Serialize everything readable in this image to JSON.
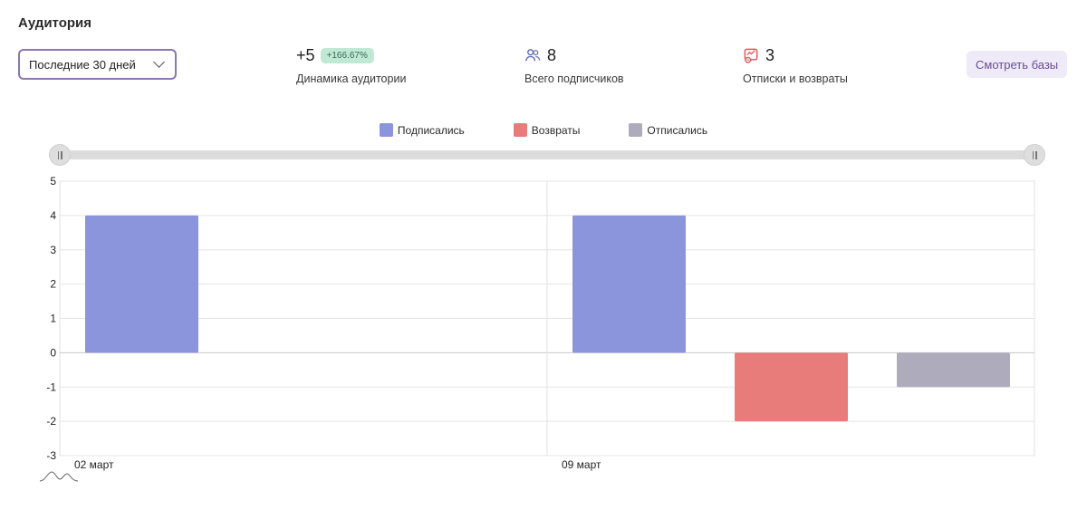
{
  "header": {
    "title": "Аудитория"
  },
  "period": {
    "value": "Последние 30 дней"
  },
  "stats": {
    "dynamics": {
      "value": "+5",
      "badge": "+166.67%",
      "label": "Динамика аудитории"
    },
    "subscribers": {
      "icon": "users-icon",
      "value": "8",
      "label": "Всего подписчиков"
    },
    "unsubscribes": {
      "icon": "unsubscribe-icon",
      "value": "3",
      "label": "Отписки и возвраты"
    }
  },
  "actions": {
    "view_bases": "Смотреть базы"
  },
  "colors": {
    "subscribed": "#8a95dc",
    "returns": "#e87c7a",
    "unsubscribed": "#aeacbc",
    "accent": "#8a77b3"
  },
  "chart_data": {
    "type": "bar",
    "categories": [
      "02 март",
      "09 март"
    ],
    "series": [
      {
        "name": "Подписались",
        "values": [
          4,
          4
        ]
      },
      {
        "name": "Возвраты",
        "values": [
          0,
          -2
        ]
      },
      {
        "name": "Отписались",
        "values": [
          0,
          -1
        ]
      }
    ],
    "ylim": [
      -3,
      5
    ],
    "yticks": [
      "5",
      "4",
      "3",
      "2",
      "1",
      "0",
      "-1",
      "-2",
      "-3"
    ],
    "grid": true,
    "legend": "top-center"
  }
}
